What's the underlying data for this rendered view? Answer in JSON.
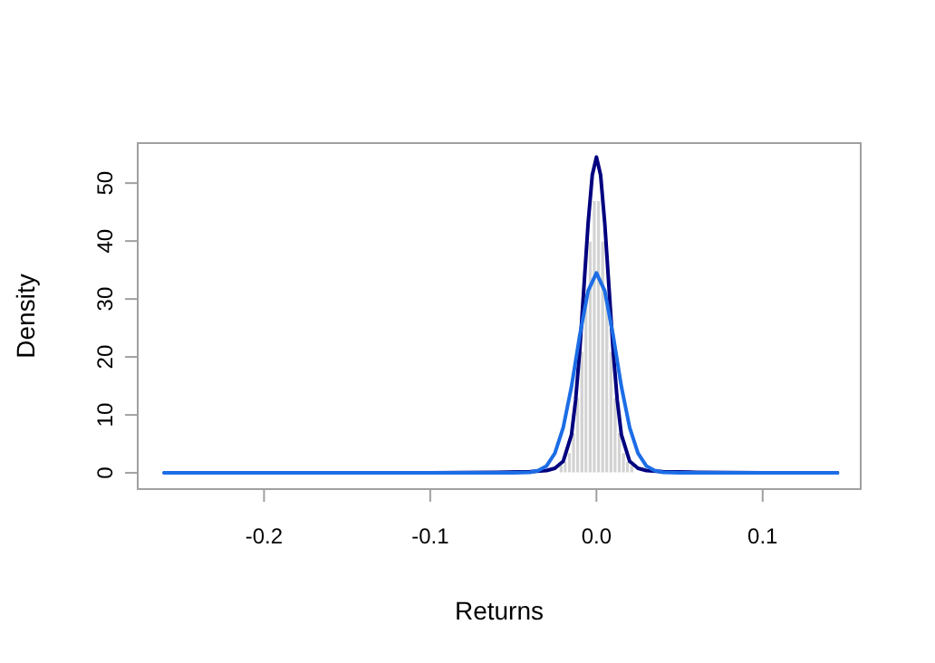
{
  "chart_data": {
    "type": "histogram",
    "xlabel": "Returns",
    "ylabel": "Density",
    "color": "#d3d3d3",
    "bins": [
      -0.0225,
      -0.02,
      -0.0175,
      -0.015,
      -0.0125,
      -0.01,
      -0.0075,
      -0.005,
      -0.0025,
      0,
      0.0025,
      0.005,
      0.0075,
      0.01,
      0.0125,
      0.015,
      0.0175,
      0.02,
      0.0225
    ],
    "values": [
      1.4,
      2,
      3.5,
      7,
      13,
      21,
      31,
      40,
      47,
      47,
      40,
      31,
      21,
      13,
      7,
      3.5,
      2,
      1.4
    ],
    "series": [
      {
        "type": "line",
        "color": "#00007f",
        "x": [
          -0.26,
          -0.1,
          -0.06,
          -0.04,
          -0.03,
          -0.025,
          -0.02,
          -0.015,
          -0.0125,
          -0.01,
          -0.0075,
          -0.005,
          -0.0025,
          0,
          0.0025,
          0.005,
          0.0075,
          0.01,
          0.0125,
          0.015,
          0.02,
          0.025,
          0.03,
          0.04,
          0.06,
          0.1,
          0.145
        ],
        "values": [
          0,
          0,
          0.1,
          0.2,
          0.4,
          0.8,
          2,
          6.6,
          12.6,
          21.3,
          32.2,
          43.1,
          51.4,
          54.5,
          51.4,
          43.1,
          32.2,
          21.3,
          12.6,
          6.6,
          2,
          0.8,
          0.4,
          0.2,
          0.1,
          0,
          0
        ]
      },
      {
        "type": "line",
        "color": "#1c6de6",
        "x": [
          -0.26,
          -0.06,
          -0.05,
          -0.04,
          -0.035,
          -0.03,
          -0.025,
          -0.02,
          -0.015,
          -0.01,
          -0.005,
          0,
          0.005,
          0.01,
          0.015,
          0.02,
          0.025,
          0.03,
          0.035,
          0.04,
          0.05,
          0.06,
          0.145
        ],
        "values": [
          0,
          0,
          0,
          0.1,
          0.4,
          1.2,
          3.4,
          7.8,
          14.9,
          23.8,
          31.4,
          34.5,
          31.4,
          23.8,
          14.9,
          7.8,
          3.4,
          1.2,
          0.4,
          0.1,
          0,
          0,
          0
        ]
      }
    ],
    "xlim": [
      -0.276,
      0.159
    ],
    "ylim": [
      -2.8,
      56.9
    ],
    "xticks": [
      -0.2,
      -0.1,
      {
        "value": 0,
        "label": "0.0"
      },
      0.1
    ],
    "yticks": [
      0,
      10,
      20,
      30,
      40,
      50
    ]
  }
}
